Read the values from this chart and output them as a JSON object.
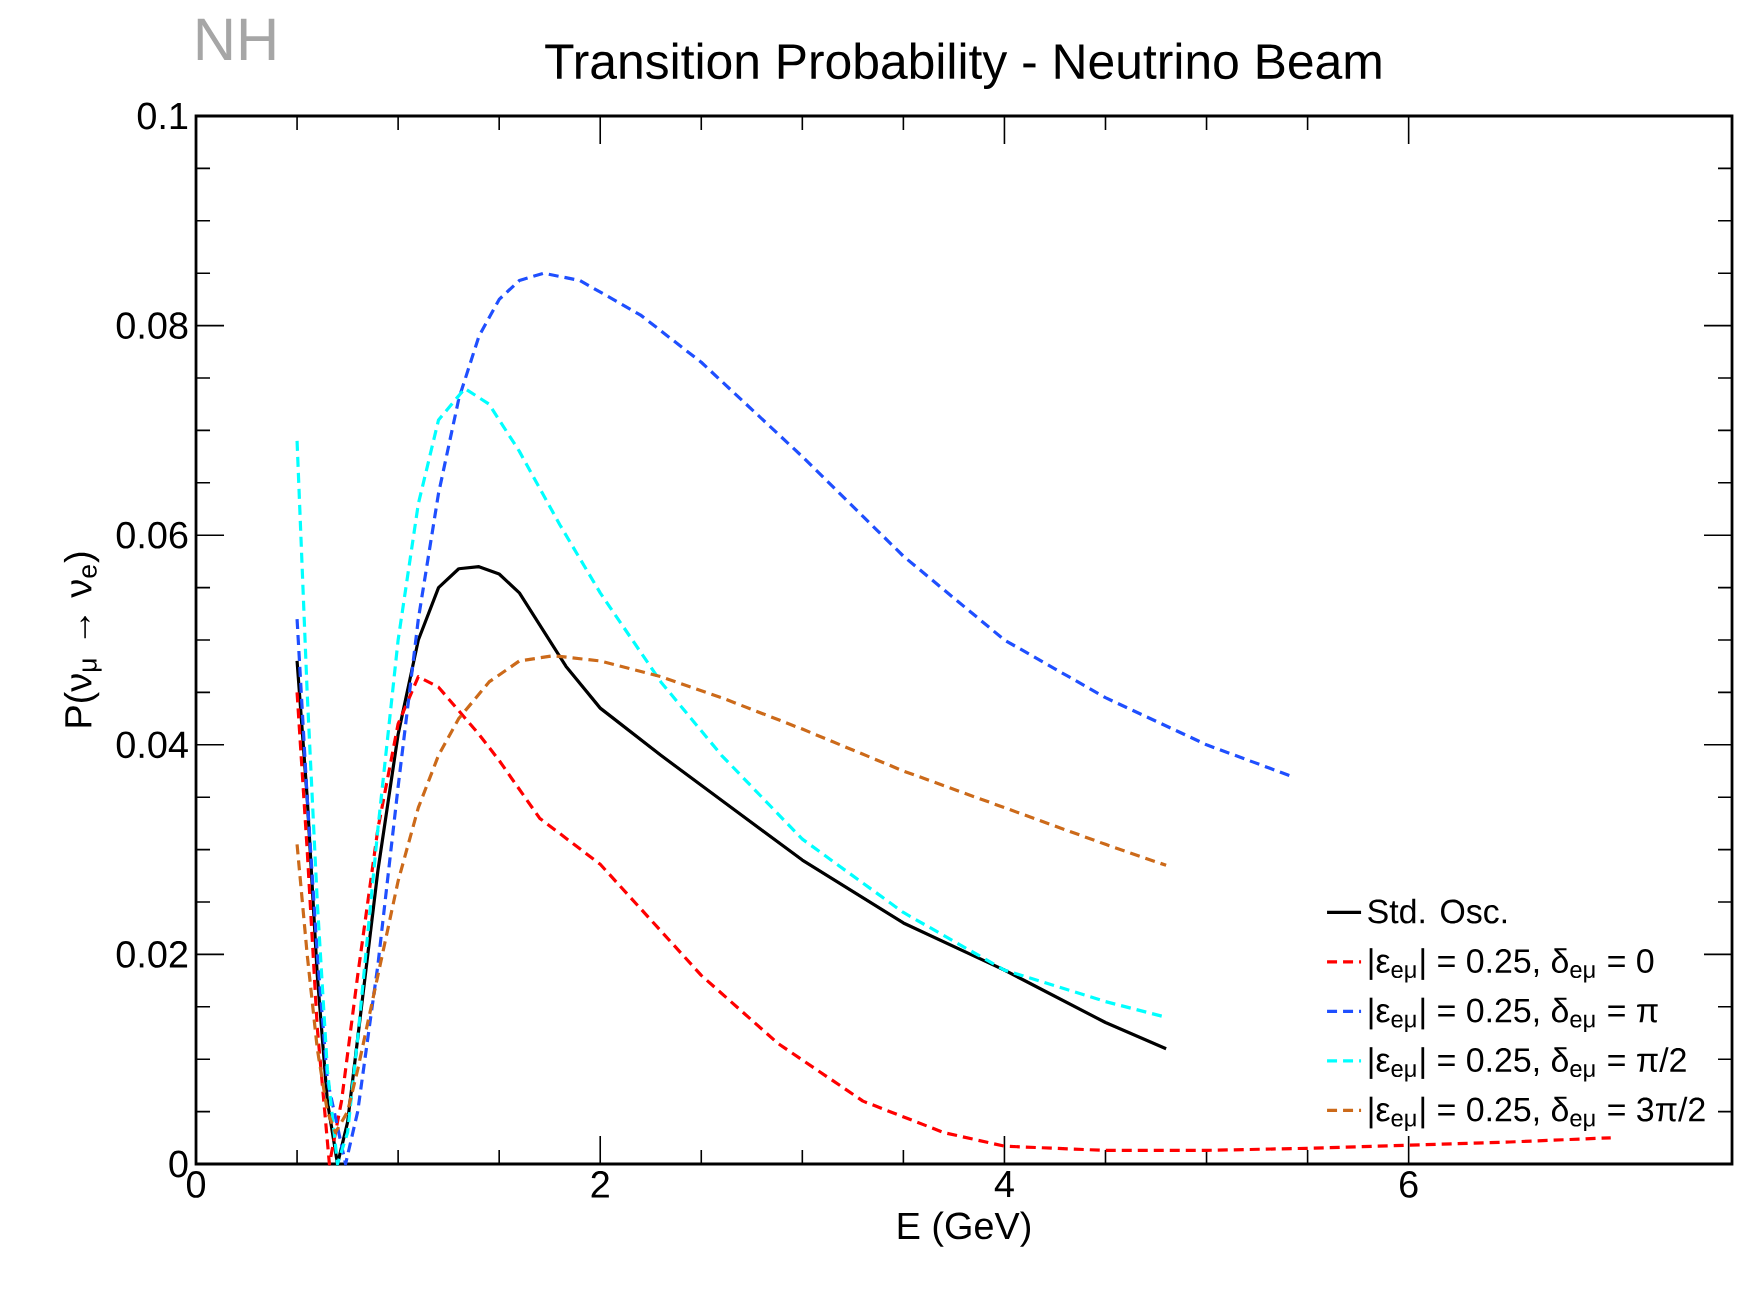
{
  "chart_data": {
    "type": "line",
    "title": "Transition Probability - Neutrino Beam",
    "annotations": [
      "NH"
    ],
    "xlabel": "E (GeV)",
    "ylabel": "P(ν$_{μ}$ → ν$_{e}$)",
    "xlim": [
      0,
      7.6
    ],
    "ylim": [
      0,
      0.1
    ],
    "xticks": [
      0,
      2,
      4,
      6
    ],
    "yticks": [
      0,
      0.02,
      0.04,
      0.06,
      0.08,
      0.1
    ],
    "legend": "bottom right",
    "marker": "none",
    "series": [
      {
        "name": "Std. Osc.",
        "color": "#000000",
        "line_style": "solid",
        "x": [
          0.5,
          0.55,
          0.6,
          0.65,
          0.7,
          0.75,
          0.8,
          0.9,
          1.0,
          1.1,
          1.2,
          1.3,
          1.4,
          1.5,
          1.6,
          1.83,
          2.0,
          2.3,
          2.6,
          3.0,
          3.5,
          4.0,
          4.5,
          4.8
        ],
        "values": [
          0.048,
          0.035,
          0.018,
          0.006,
          0.0,
          0.004,
          0.012,
          0.028,
          0.041,
          0.05,
          0.055,
          0.0568,
          0.057,
          0.0563,
          0.0545,
          0.0475,
          0.0435,
          0.039,
          0.0347,
          0.029,
          0.023,
          0.0185,
          0.0135,
          0.011
        ]
      },
      {
        "name": "|ε$_{eμ}$| = 0.25, δ$_{eμ}$ = 0",
        "color": "#ff0000",
        "line_style": "dashed",
        "x": [
          0.5,
          0.55,
          0.6,
          0.66,
          0.72,
          0.8,
          0.9,
          1.0,
          1.1,
          1.2,
          1.4,
          1.5,
          1.7,
          2.0,
          2.5,
          2.88,
          3.3,
          3.7,
          4.0,
          4.5,
          5.0,
          5.5,
          6.0,
          6.5,
          7.0
        ],
        "values": [
          0.045,
          0.03,
          0.013,
          0.0,
          0.006,
          0.018,
          0.032,
          0.042,
          0.0465,
          0.0455,
          0.041,
          0.0385,
          0.033,
          0.0286,
          0.018,
          0.0115,
          0.006,
          0.003,
          0.0017,
          0.0013,
          0.0013,
          0.0015,
          0.0018,
          0.0021,
          0.0025
        ]
      },
      {
        "name": "|ε$_{eμ}$| = 0.25, δ$_{eμ}$ = π",
        "color": "#1f4fff",
        "line_style": "dashed",
        "x": [
          0.5,
          0.55,
          0.6,
          0.65,
          0.74,
          0.8,
          0.9,
          1.0,
          1.1,
          1.2,
          1.3,
          1.4,
          1.5,
          1.6,
          1.72,
          1.9,
          2.2,
          2.5,
          3.0,
          3.5,
          4.0,
          4.5,
          5.0,
          5.42
        ],
        "values": [
          0.052,
          0.035,
          0.02,
          0.008,
          0.0,
          0.005,
          0.019,
          0.036,
          0.052,
          0.064,
          0.073,
          0.079,
          0.0825,
          0.0843,
          0.085,
          0.0843,
          0.081,
          0.0765,
          0.0675,
          0.058,
          0.05,
          0.0445,
          0.04,
          0.037
        ]
      },
      {
        "name": "|ε$_{eμ}$| = 0.25, δ$_{eμ}$ = π/2",
        "color": "#00ffff",
        "line_style": "dashed",
        "x": [
          0.5,
          0.55,
          0.6,
          0.65,
          0.7,
          0.75,
          0.8,
          0.9,
          1.0,
          1.1,
          1.2,
          1.33,
          1.45,
          1.6,
          1.8,
          2.0,
          2.3,
          2.6,
          3.0,
          3.5,
          4.0,
          4.5,
          4.8
        ],
        "values": [
          0.069,
          0.045,
          0.025,
          0.009,
          0.0,
          0.003,
          0.012,
          0.032,
          0.05,
          0.063,
          0.071,
          0.074,
          0.0725,
          0.068,
          0.061,
          0.0545,
          0.046,
          0.039,
          0.031,
          0.024,
          0.0185,
          0.0155,
          0.014
        ]
      },
      {
        "name": "|ε$_{eμ}$| = 0.25, δ$_{eμ}$ = 3π/2",
        "color": "#cc6a1a",
        "line_style": "dashed",
        "x": [
          0.5,
          0.55,
          0.6,
          0.65,
          0.69,
          0.75,
          0.8,
          0.9,
          1.0,
          1.1,
          1.2,
          1.3,
          1.45,
          1.6,
          1.77,
          2.0,
          2.3,
          2.6,
          3.0,
          3.5,
          4.0,
          4.5,
          4.8
        ],
        "values": [
          0.0305,
          0.02,
          0.011,
          0.005,
          0.003,
          0.005,
          0.009,
          0.018,
          0.027,
          0.034,
          0.039,
          0.0425,
          0.046,
          0.048,
          0.0485,
          0.048,
          0.0465,
          0.0445,
          0.0415,
          0.0375,
          0.034,
          0.0305,
          0.0285
        ]
      }
    ]
  }
}
